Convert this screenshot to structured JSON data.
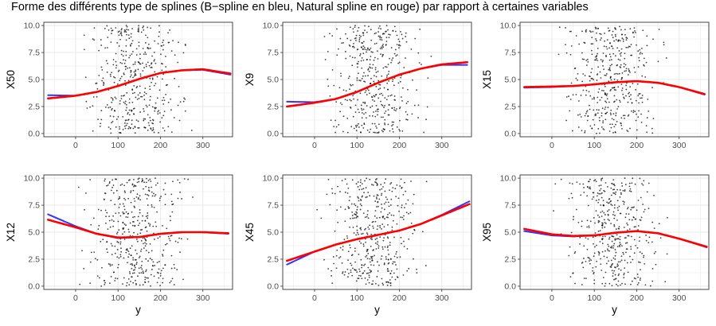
{
  "title": "Forme des différents type de splines (B−spline en bleu, Natural spline en rouge) par rapport à certaines variables",
  "colors": {
    "bspline": "#3333ff",
    "natural": "#ff0000",
    "points": "#000000",
    "grid": "#ebebeb",
    "border": "#333333"
  },
  "chart_data": [
    {
      "type": "scatter",
      "ylabel": "X50",
      "xlabel": "",
      "xlim": [
        -75,
        370
      ],
      "ylim": [
        -0.3,
        10.3
      ],
      "xticks": [
        0,
        100,
        200,
        300
      ],
      "yticks": [
        0.0,
        2.5,
        5.0,
        7.5,
        10.0
      ],
      "x_range_points": [
        -65,
        365
      ],
      "y_range_points": [
        0,
        10
      ],
      "series": [
        {
          "name": "B-spline",
          "x": [
            -65,
            0,
            50,
            100,
            150,
            200,
            250,
            300,
            365
          ],
          "y": [
            3.55,
            3.5,
            3.85,
            4.4,
            5.05,
            5.6,
            5.85,
            5.9,
            5.45
          ]
        },
        {
          "name": "Natural spline",
          "x": [
            -65,
            0,
            50,
            100,
            150,
            200,
            250,
            300,
            365
          ],
          "y": [
            3.25,
            3.5,
            3.85,
            4.4,
            5.05,
            5.6,
            5.85,
            5.95,
            5.55
          ]
        }
      ]
    },
    {
      "type": "scatter",
      "ylabel": "X9",
      "xlabel": "",
      "xlim": [
        -75,
        370
      ],
      "ylim": [
        -0.3,
        10.3
      ],
      "xticks": [
        0,
        100,
        200,
        300
      ],
      "yticks": [
        0.0,
        2.5,
        5.0,
        7.5,
        10.0
      ],
      "x_range_points": [
        -65,
        365
      ],
      "y_range_points": [
        0,
        10
      ],
      "series": [
        {
          "name": "B-spline",
          "x": [
            -65,
            0,
            50,
            100,
            150,
            200,
            250,
            300,
            360
          ],
          "y": [
            2.95,
            2.9,
            3.2,
            3.85,
            4.7,
            5.45,
            6.0,
            6.35,
            6.35
          ]
        },
        {
          "name": "Natural spline",
          "x": [
            -65,
            0,
            50,
            100,
            150,
            200,
            250,
            300,
            360
          ],
          "y": [
            2.5,
            2.85,
            3.2,
            3.85,
            4.7,
            5.45,
            6.0,
            6.4,
            6.6
          ]
        }
      ]
    },
    {
      "type": "scatter",
      "ylabel": "X15",
      "xlabel": "",
      "xlim": [
        -75,
        370
      ],
      "ylim": [
        -0.3,
        10.3
      ],
      "xticks": [
        0,
        100,
        200,
        300
      ],
      "yticks": [
        0.0,
        2.5,
        5.0,
        7.5,
        10.0
      ],
      "x_range_points": [
        -65,
        365
      ],
      "y_range_points": [
        0,
        10
      ],
      "series": [
        {
          "name": "B-spline",
          "x": [
            -65,
            0,
            50,
            100,
            150,
            200,
            250,
            300,
            360
          ],
          "y": [
            4.25,
            4.3,
            4.4,
            4.55,
            4.75,
            4.85,
            4.7,
            4.3,
            3.6
          ]
        },
        {
          "name": "Natural spline",
          "x": [
            -65,
            0,
            50,
            100,
            150,
            200,
            250,
            300,
            360
          ],
          "y": [
            4.3,
            4.35,
            4.4,
            4.55,
            4.75,
            4.85,
            4.7,
            4.3,
            3.65
          ]
        }
      ]
    },
    {
      "type": "scatter",
      "ylabel": "X12",
      "xlabel": "y",
      "xlim": [
        -75,
        370
      ],
      "ylim": [
        -0.3,
        10.3
      ],
      "xticks": [
        0,
        100,
        200,
        300
      ],
      "yticks": [
        0.0,
        2.5,
        5.0,
        7.5,
        10.0
      ],
      "x_range_points": [
        -65,
        365
      ],
      "y_range_points": [
        0,
        10
      ],
      "series": [
        {
          "name": "B-spline",
          "x": [
            -65,
            0,
            50,
            100,
            150,
            200,
            250,
            300,
            360
          ],
          "y": [
            6.65,
            5.55,
            4.85,
            4.45,
            4.55,
            4.85,
            5.0,
            5.0,
            4.85
          ]
        },
        {
          "name": "Natural spline",
          "x": [
            -65,
            0,
            50,
            100,
            150,
            200,
            250,
            300,
            360
          ],
          "y": [
            6.15,
            5.45,
            4.85,
            4.5,
            4.55,
            4.85,
            5.0,
            5.0,
            4.9
          ]
        }
      ]
    },
    {
      "type": "scatter",
      "ylabel": "X45",
      "xlabel": "y",
      "xlim": [
        -75,
        370
      ],
      "ylim": [
        -0.3,
        10.3
      ],
      "xticks": [
        0,
        100,
        200,
        300
      ],
      "yticks": [
        0.0,
        2.5,
        5.0,
        7.5,
        10.0
      ],
      "x_range_points": [
        -65,
        365
      ],
      "y_range_points": [
        0,
        10
      ],
      "series": [
        {
          "name": "B-spline",
          "x": [
            -65,
            0,
            50,
            100,
            150,
            200,
            250,
            300,
            365
          ],
          "y": [
            2.0,
            3.2,
            3.85,
            4.35,
            4.75,
            5.15,
            5.75,
            6.6,
            7.85
          ]
        },
        {
          "name": "Natural spline",
          "x": [
            -65,
            0,
            50,
            100,
            150,
            200,
            250,
            300,
            365
          ],
          "y": [
            2.35,
            3.2,
            3.85,
            4.35,
            4.75,
            5.15,
            5.75,
            6.55,
            7.6
          ]
        }
      ]
    },
    {
      "type": "scatter",
      "ylabel": "X95",
      "xlabel": "y",
      "xlim": [
        -75,
        370
      ],
      "ylim": [
        -0.3,
        10.3
      ],
      "xticks": [
        0,
        100,
        200,
        300
      ],
      "yticks": [
        0.0,
        2.5,
        5.0,
        7.5,
        10.0
      ],
      "x_range_points": [
        -65,
        365
      ],
      "y_range_points": [
        0,
        10
      ],
      "series": [
        {
          "name": "B-spline",
          "x": [
            -65,
            0,
            50,
            100,
            150,
            200,
            250,
            300,
            365
          ],
          "y": [
            5.1,
            4.7,
            4.6,
            4.7,
            4.95,
            5.1,
            4.9,
            4.4,
            3.6
          ]
        },
        {
          "name": "Natural spline",
          "x": [
            -65,
            0,
            50,
            100,
            150,
            200,
            250,
            300,
            365
          ],
          "y": [
            5.3,
            4.8,
            4.65,
            4.7,
            4.95,
            5.1,
            4.9,
            4.4,
            3.65
          ]
        }
      ]
    }
  ]
}
